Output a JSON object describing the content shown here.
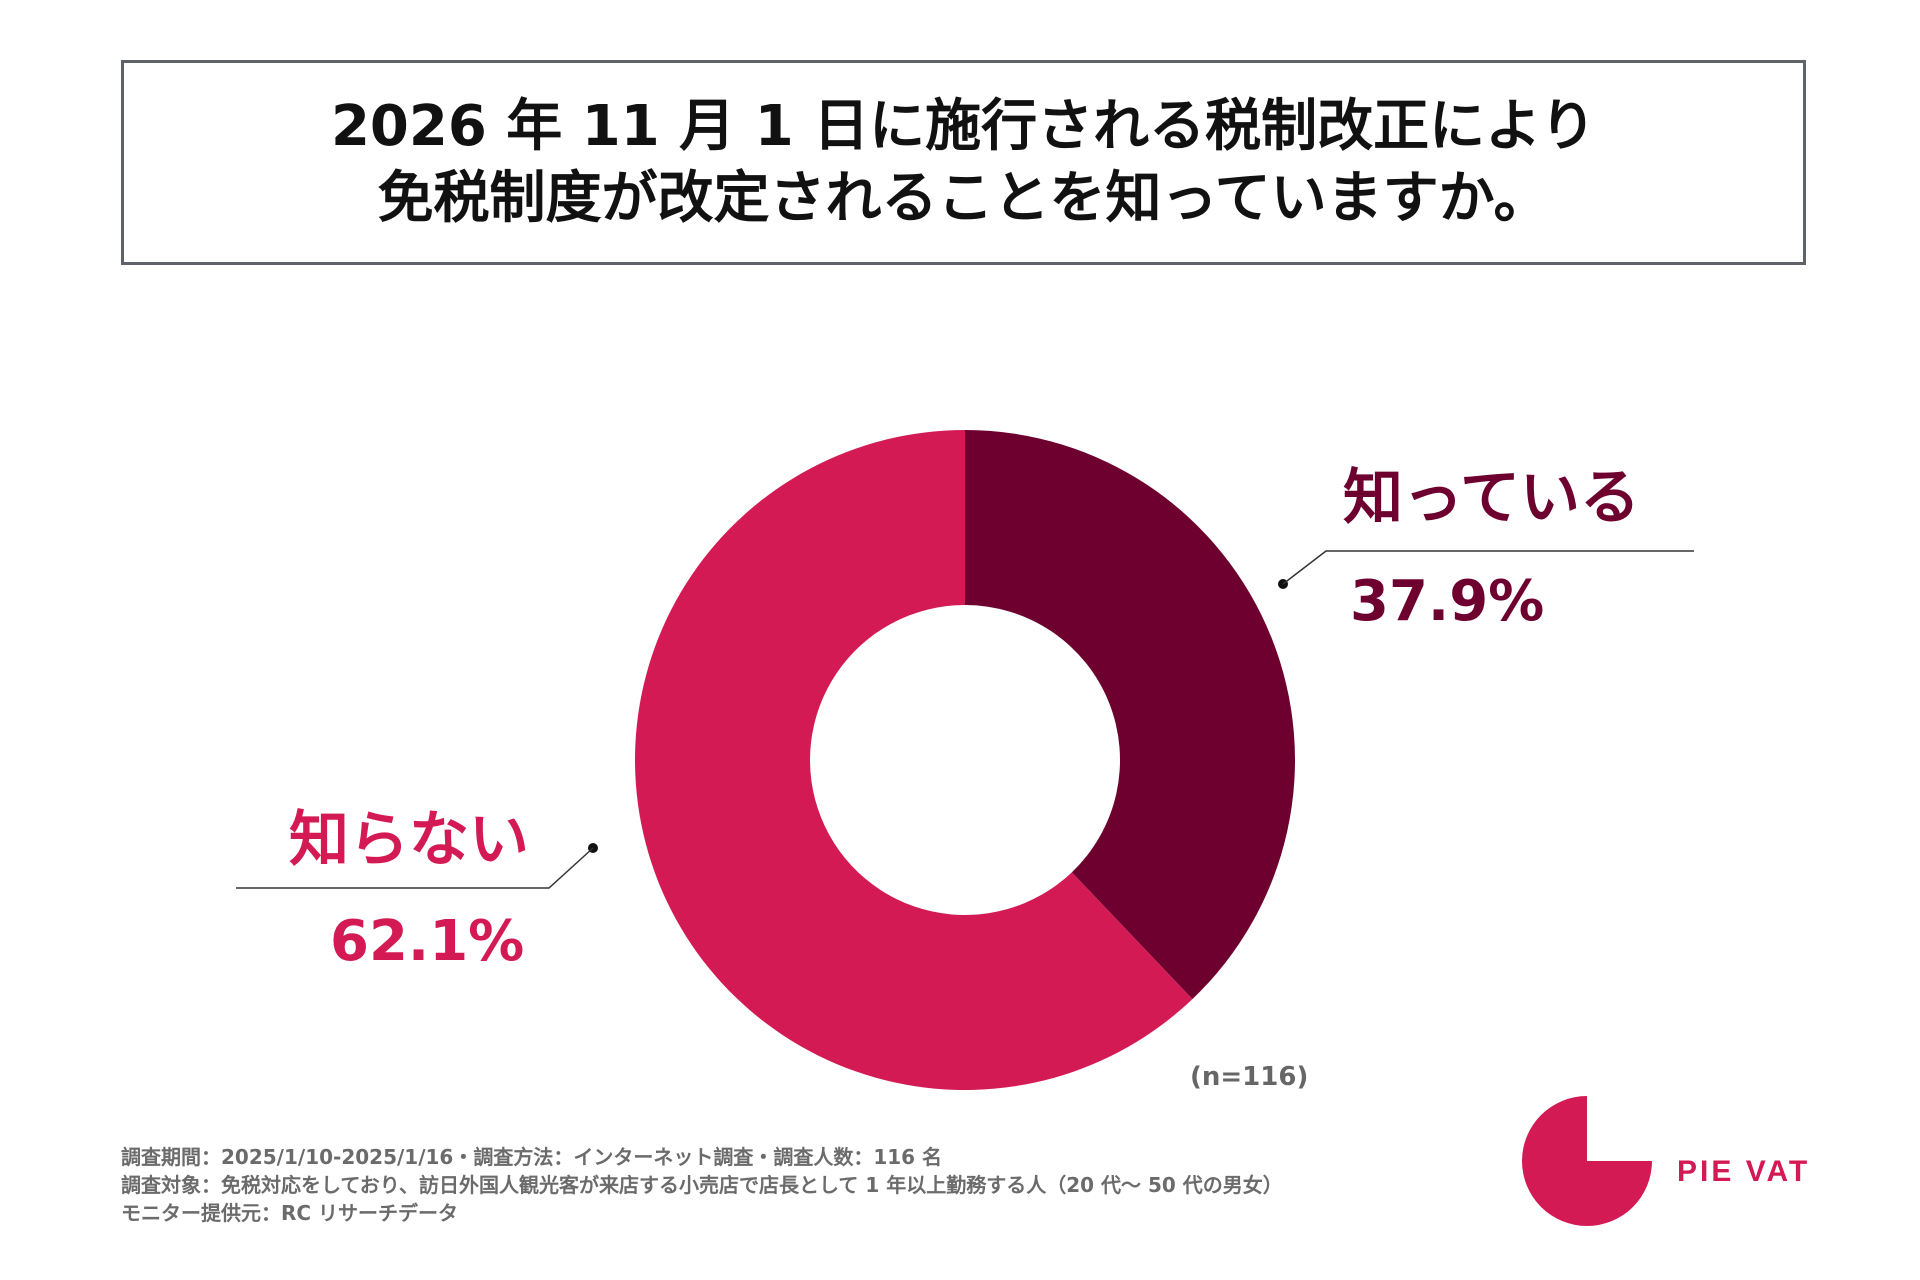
{
  "title": {
    "line1": "2026 年 11 月 1 日に施行される税制改正により",
    "line2": "免税制度が改定されることを知っていますか。"
  },
  "chart_data": {
    "type": "pie",
    "variant": "donut",
    "slices": [
      {
        "label": "知っている",
        "value": 37.9,
        "display": "37.9%",
        "color": "#6e0030"
      },
      {
        "label": "知らない",
        "value": 62.1,
        "display": "62.1%",
        "color": "#d41a54"
      }
    ],
    "sample_note": "(n=116)"
  },
  "footer": {
    "line1": "調査期間：2025/1/10-2025/1/16・調査方法：インターネット調査・調査人数：116 名",
    "line2": "調査対象：免税対応をしており、訪日外国人観光客が来店する小売店で店長として 1 年以上勤務する人（20 代〜 50 代の男女）",
    "line3": "モニター提供元：RC リサーチデータ"
  },
  "logo": {
    "text": "PIE VAT",
    "color": "#d41a54"
  }
}
